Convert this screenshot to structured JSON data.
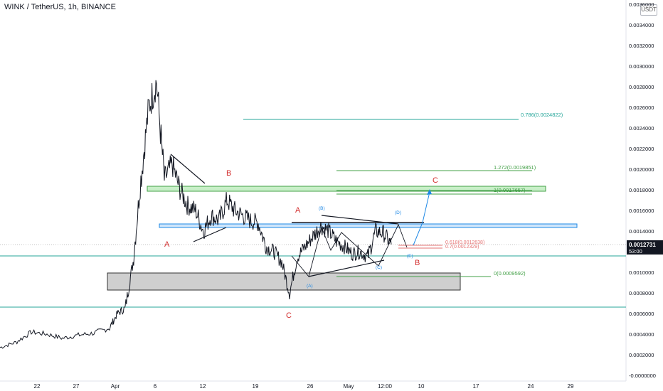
{
  "header": {
    "title": "WINK / TetherUS, 1h, BINANCE",
    "currency_badge": "USDT"
  },
  "colors": {
    "wave": "#d32f2f",
    "wave_minor": "#1e88e5",
    "fib_green": "#43a047",
    "teal": "#26a69a",
    "box_gray": "#cfcfcf",
    "box_blue": "#cfe6fb",
    "box_green": "#c8efc8",
    "price_label_bg": "#131722"
  },
  "chart_data": {
    "type": "line",
    "title": "WINK / TetherUS, 1h, BINANCE",
    "y_axis": {
      "side": "right",
      "ticks": [
        "0.0036000",
        "0.0034000",
        "0.0032000",
        "0.0030000",
        "0.0028000",
        "0.0026000",
        "0.0024000",
        "0.0022000",
        "0.0020000",
        "0.0018000",
        "0.0016000",
        "0.0014000",
        "0.0012000",
        "0.0010000",
        "0.0008000",
        "0.0006000",
        "0.0004000",
        "0.0002000",
        "-0.0000000"
      ],
      "ylim": [
        -2e-05,
        0.0036
      ]
    },
    "x_axis": {
      "ticks": [
        "22",
        "27",
        "Apr",
        "6",
        "12",
        "19",
        "26",
        "May",
        "12:00",
        "10",
        "17",
        "24",
        "29"
      ]
    },
    "price": {
      "x": [
        "03-17",
        "03-19",
        "03-21",
        "03-23",
        "03-25",
        "03-27",
        "03-29",
        "03-31",
        "04-01",
        "04-02",
        "04-03",
        "04-04",
        "04-05",
        "04-06",
        "04-07",
        "04-08",
        "04-09",
        "04-10",
        "04-11",
        "04-12",
        "04-13",
        "04-14",
        "04-15",
        "04-16",
        "04-17",
        "04-18",
        "04-19",
        "04-20",
        "04-21",
        "04-22",
        "04-23",
        "04-24",
        "04-25",
        "04-26",
        "04-27",
        "04-28",
        "04-29",
        "04-30",
        "05-01",
        "05-02",
        "05-03",
        "05-04",
        "05-05",
        "05-06"
      ],
      "y": [
        0.00027,
        0.00032,
        0.00042,
        0.0004,
        0.00036,
        0.00039,
        0.00041,
        0.00046,
        0.0006,
        0.00065,
        0.0011,
        0.0019,
        0.0026,
        0.00285,
        0.0019,
        0.00205,
        0.0018,
        0.00165,
        0.0016,
        0.0014,
        0.00155,
        0.0015,
        0.0017,
        0.0016,
        0.00155,
        0.0015,
        0.00148,
        0.00125,
        0.0012,
        0.0011,
        0.0008,
        0.00115,
        0.00125,
        0.00135,
        0.00145,
        0.0014,
        0.0013,
        0.00125,
        0.00118,
        0.0012,
        0.00115,
        0.0014,
        0.00138,
        0.00127
      ]
    },
    "current_price": {
      "label": "0.0012731",
      "countdown": "53:00"
    },
    "fib_levels": [
      {
        "label": "0.786(0.0024822)",
        "value": 0.0024822
      },
      {
        "label": "1.272(0.0019851)",
        "value": 0.0019851
      },
      {
        "label": "1(0.0017657)",
        "value": 0.0017657
      },
      {
        "label": "0.618(0.0012638)",
        "value": 0.0012638
      },
      {
        "label": "0.7(0.0012329)",
        "value": 0.0012329
      },
      {
        "label": "0(0.0009592)",
        "value": 0.0009592
      }
    ],
    "wave_labels": [
      {
        "text": "A",
        "kind": "major"
      },
      {
        "text": "B",
        "kind": "major"
      },
      {
        "text": "A",
        "kind": "major"
      },
      {
        "text": "C",
        "kind": "major"
      },
      {
        "text": "B",
        "kind": "major"
      },
      {
        "text": "C",
        "kind": "major"
      },
      {
        "text": "(A)",
        "kind": "minor"
      },
      {
        "text": "(B)",
        "kind": "minor"
      },
      {
        "text": "(C)",
        "kind": "minor"
      },
      {
        "text": "(D)",
        "kind": "minor"
      },
      {
        "text": "(E)",
        "kind": "minor"
      }
    ]
  }
}
